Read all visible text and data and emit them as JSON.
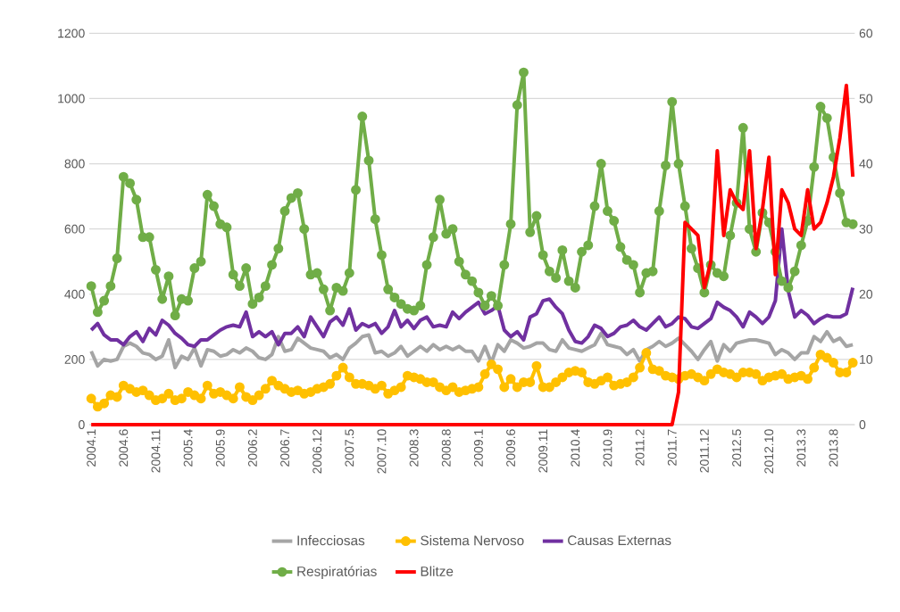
{
  "chart_data": {
    "type": "line",
    "categories": [
      "2004.1",
      null,
      null,
      null,
      null,
      "2004.6",
      null,
      null,
      null,
      null,
      "2004.11",
      null,
      null,
      null,
      null,
      "2005.4",
      null,
      null,
      null,
      null,
      "2005.9",
      null,
      null,
      null,
      null,
      "2006.2",
      null,
      null,
      null,
      null,
      "2006.7",
      null,
      null,
      null,
      null,
      "2006.12",
      null,
      null,
      null,
      null,
      "2007.5",
      null,
      null,
      null,
      null,
      "2007.10",
      null,
      null,
      null,
      null,
      "2008.3",
      null,
      null,
      null,
      null,
      "2008.8",
      null,
      null,
      null,
      null,
      "2009.1",
      null,
      null,
      null,
      null,
      "2009.6",
      null,
      null,
      null,
      null,
      "2009.11",
      null,
      null,
      null,
      null,
      "2010.4",
      null,
      null,
      null,
      null,
      "2010.9",
      null,
      null,
      null,
      null,
      "2011.2",
      null,
      null,
      null,
      null,
      "2011.7",
      null,
      null,
      null,
      null,
      "2011.12",
      null,
      null,
      null,
      null,
      "2012.5",
      null,
      null,
      null,
      null,
      "2012.10",
      null,
      null,
      null,
      null,
      "2013.3",
      null,
      null,
      null,
      null,
      "2013.8",
      null,
      null,
      null
    ],
    "series": [
      {
        "name": "Infecciosas",
        "color": "#a5a5a5",
        "marker": "none",
        "values": [
          225,
          180,
          200,
          195,
          200,
          240,
          250,
          240,
          220,
          215,
          200,
          210,
          260,
          175,
          210,
          200,
          235,
          180,
          230,
          225,
          210,
          215,
          230,
          220,
          235,
          225,
          205,
          200,
          215,
          270,
          225,
          230,
          265,
          250,
          235,
          230,
          225,
          205,
          215,
          200,
          235,
          250,
          270,
          275,
          220,
          225,
          210,
          220,
          240,
          210,
          225,
          240,
          225,
          245,
          230,
          240,
          230,
          240,
          225,
          225,
          195,
          240,
          190,
          245,
          225,
          260,
          250,
          235,
          240,
          250,
          250,
          230,
          225,
          260,
          235,
          230,
          225,
          235,
          245,
          280,
          245,
          240,
          235,
          215,
          230,
          195,
          230,
          240,
          255,
          240,
          250,
          265,
          245,
          225,
          200,
          230,
          255,
          195,
          245,
          225,
          250,
          255,
          260,
          260,
          255,
          250,
          215,
          230,
          220,
          200,
          220,
          220,
          270,
          255,
          285,
          255,
          265,
          240,
          245
        ]
      },
      {
        "name": "Sistema Nervoso",
        "color": "#ffc000",
        "marker": "circle",
        "values": [
          80,
          55,
          65,
          90,
          85,
          120,
          110,
          100,
          105,
          90,
          75,
          80,
          95,
          75,
          80,
          100,
          90,
          80,
          120,
          95,
          100,
          90,
          80,
          115,
          85,
          75,
          90,
          110,
          135,
          120,
          110,
          100,
          105,
          95,
          100,
          110,
          115,
          125,
          150,
          175,
          145,
          125,
          125,
          120,
          110,
          120,
          95,
          105,
          115,
          150,
          145,
          140,
          130,
          130,
          115,
          105,
          115,
          100,
          105,
          110,
          115,
          155,
          185,
          170,
          115,
          140,
          115,
          130,
          130,
          180,
          115,
          115,
          130,
          145,
          160,
          165,
          160,
          130,
          125,
          135,
          145,
          120,
          125,
          130,
          145,
          175,
          220,
          170,
          165,
          150,
          145,
          140,
          150,
          155,
          145,
          135,
          155,
          170,
          160,
          155,
          145,
          160,
          160,
          155,
          135,
          145,
          150,
          155,
          140,
          145,
          150,
          140,
          175,
          215,
          205,
          190,
          160,
          160,
          190
        ]
      },
      {
        "name": "Causas Externas",
        "color": "#7030a0",
        "marker": "none",
        "values": [
          290,
          310,
          275,
          260,
          260,
          245,
          270,
          285,
          255,
          295,
          275,
          320,
          305,
          280,
          265,
          245,
          240,
          260,
          260,
          275,
          290,
          300,
          305,
          300,
          345,
          270,
          285,
          270,
          285,
          245,
          280,
          280,
          300,
          270,
          330,
          300,
          270,
          315,
          330,
          305,
          355,
          290,
          310,
          300,
          310,
          280,
          300,
          350,
          300,
          320,
          295,
          320,
          330,
          300,
          305,
          300,
          345,
          325,
          345,
          360,
          375,
          340,
          350,
          365,
          290,
          270,
          285,
          260,
          330,
          340,
          380,
          385,
          360,
          340,
          290,
          255,
          250,
          270,
          305,
          295,
          270,
          280,
          300,
          305,
          320,
          300,
          290,
          310,
          330,
          300,
          310,
          330,
          325,
          300,
          295,
          310,
          325,
          375,
          360,
          350,
          330,
          300,
          345,
          330,
          310,
          330,
          380,
          600,
          410,
          330,
          350,
          335,
          310,
          325,
          335,
          330,
          330,
          340,
          420
        ]
      },
      {
        "name": "Respiratórias",
        "color": "#70ad47",
        "marker": "circle",
        "values": [
          425,
          345,
          380,
          425,
          510,
          760,
          740,
          690,
          575,
          575,
          475,
          385,
          455,
          335,
          385,
          380,
          480,
          500,
          705,
          670,
          615,
          605,
          460,
          425,
          480,
          370,
          390,
          425,
          490,
          540,
          655,
          695,
          710,
          600,
          460,
          465,
          415,
          350,
          420,
          410,
          465,
          720,
          945,
          810,
          630,
          520,
          415,
          390,
          370,
          355,
          350,
          365,
          490,
          575,
          690,
          585,
          600,
          500,
          460,
          440,
          405,
          365,
          395,
          365,
          490,
          615,
          980,
          1080,
          590,
          640,
          520,
          470,
          450,
          535,
          440,
          420,
          530,
          550,
          670,
          800,
          655,
          625,
          545,
          505,
          490,
          405,
          465,
          470,
          655,
          795,
          990,
          800,
          670,
          540,
          480,
          405,
          490,
          465,
          455,
          580,
          680,
          910,
          600,
          530,
          650,
          620,
          530,
          440,
          420,
          470,
          550,
          625,
          790,
          975,
          940,
          820,
          710,
          620,
          615
        ]
      },
      {
        "name": "Blitze",
        "color": "#ff0000",
        "marker": "none",
        "axis": "y2",
        "values": [
          0,
          0,
          0,
          0,
          0,
          0,
          0,
          0,
          0,
          0,
          0,
          0,
          0,
          0,
          0,
          0,
          0,
          0,
          0,
          0,
          0,
          0,
          0,
          0,
          0,
          0,
          0,
          0,
          0,
          0,
          0,
          0,
          0,
          0,
          0,
          0,
          0,
          0,
          0,
          0,
          0,
          0,
          0,
          0,
          0,
          0,
          0,
          0,
          0,
          0,
          0,
          0,
          0,
          0,
          0,
          0,
          0,
          0,
          0,
          0,
          0,
          0,
          0,
          0,
          0,
          0,
          0,
          0,
          0,
          0,
          0,
          0,
          0,
          0,
          0,
          0,
          0,
          0,
          0,
          0,
          0,
          0,
          0,
          0,
          0,
          0,
          0,
          0,
          0,
          0,
          0,
          5,
          31,
          30,
          29,
          21,
          25,
          42,
          29,
          36,
          34,
          33,
          42,
          27,
          33,
          41,
          23,
          36,
          34,
          30,
          29,
          36,
          30,
          31,
          34,
          38,
          44,
          52,
          38
        ]
      }
    ],
    "ylim": [
      0,
      1200
    ],
    "yticks": [
      0,
      200,
      400,
      600,
      800,
      1000,
      1200
    ],
    "y2lim": [
      0,
      60
    ],
    "y2ticks": [
      0,
      10,
      20,
      30,
      40,
      50,
      60
    ],
    "grid": "y",
    "legend": "bottom"
  }
}
